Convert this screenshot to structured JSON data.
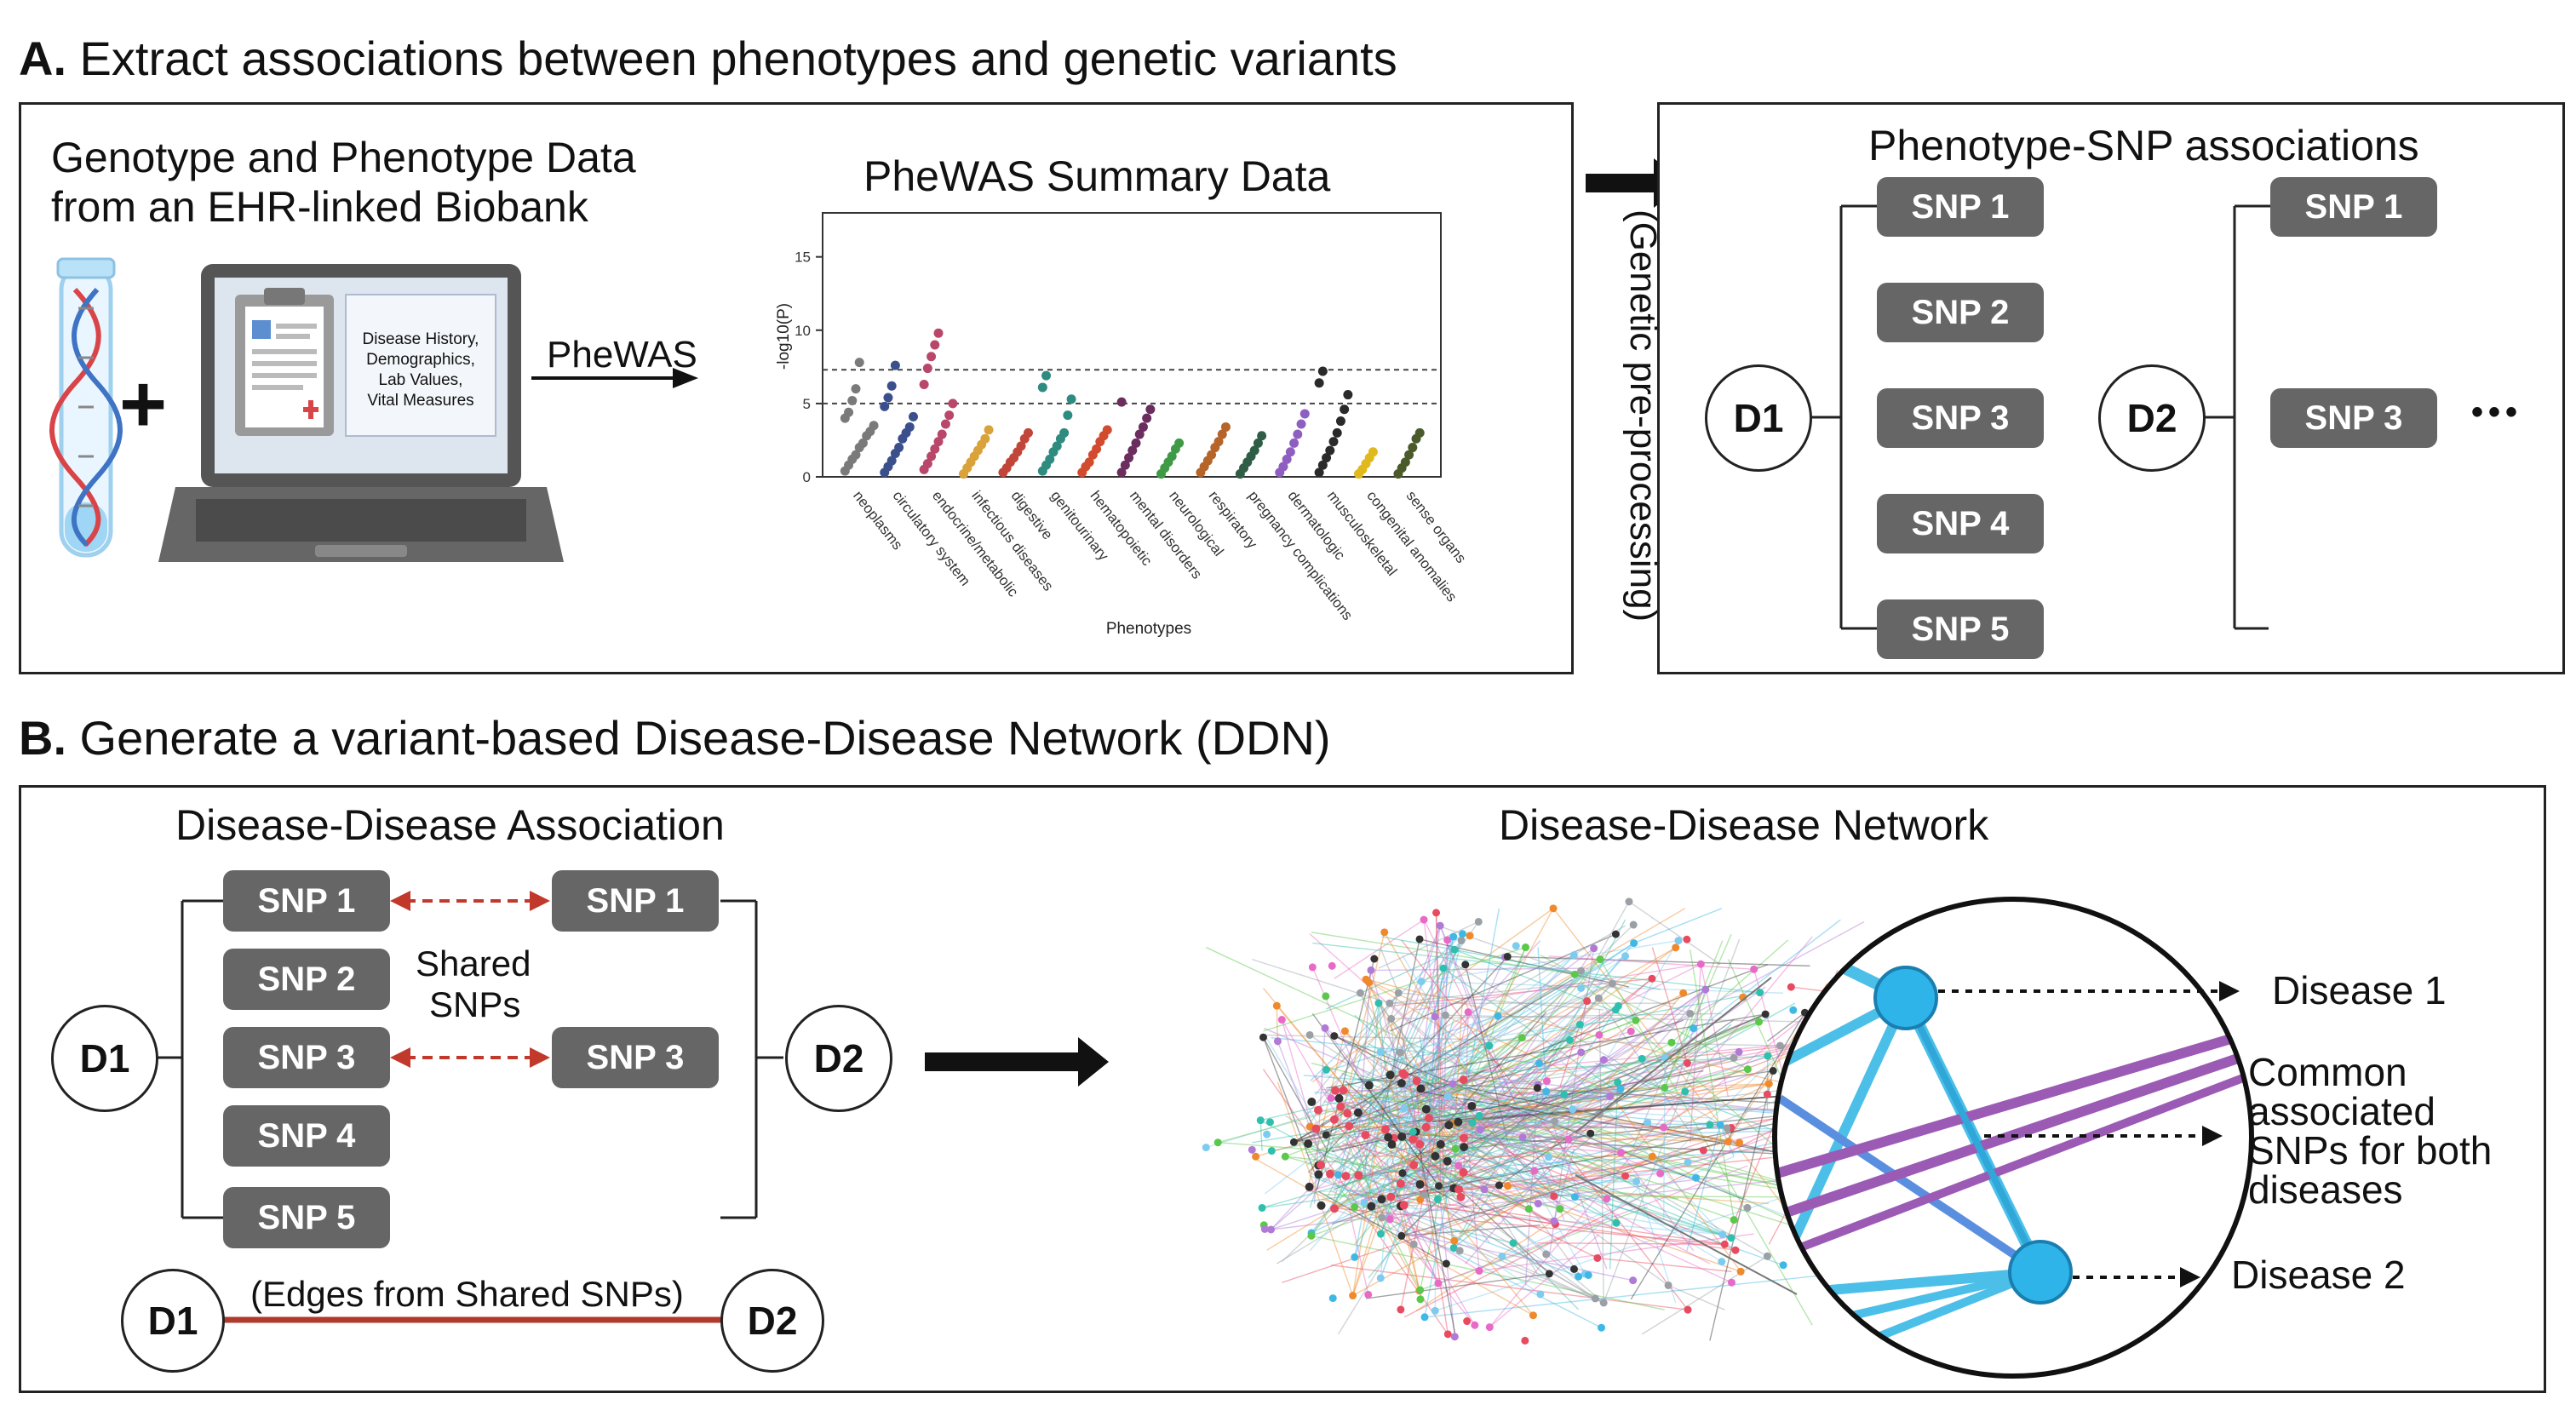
{
  "section_a": {
    "letter": "A.",
    "title": " Extract associations between phenotypes and genetic variants",
    "left_panel": {
      "data_title_line1": "Genotype and Phenotype Data",
      "data_title_line2": "from an EHR-linked Biobank",
      "plus": "+",
      "record_lines": [
        "Disease History,",
        "Demographics,",
        "Lab Values,",
        "Vital Measures"
      ],
      "arrow_label": "PheWAS",
      "plot_title": "PheWAS Summary Data"
    },
    "transition_label": "(Genetic pre-processing)",
    "right_panel": {
      "title": "Phenotype-SNP associations",
      "d1": "D1",
      "d2": "D2",
      "d1_snps": [
        "SNP 1",
        "SNP 2",
        "SNP 3",
        "SNP 4",
        "SNP 5"
      ],
      "d2_snps": [
        "SNP 1",
        "SNP 3"
      ],
      "ellipsis": "•••"
    }
  },
  "section_b": {
    "letter": "B.",
    "title": " Generate a variant-based Disease-Disease Network (DDN)",
    "association": {
      "title": "Disease-Disease Association",
      "d1": "D1",
      "d2": "D2",
      "d1_snps": [
        "SNP 1",
        "SNP 2",
        "SNP 3",
        "SNP 4",
        "SNP 5"
      ],
      "d2_snps": [
        "SNP 1",
        "SNP 3"
      ],
      "shared_line1": "Shared",
      "shared_line2": "SNPs",
      "edge_label": "(Edges from Shared SNPs)",
      "edge_d1": "D1",
      "edge_d2": "D2"
    },
    "network": {
      "title": "Disease-Disease Network",
      "disease1": "Disease 1",
      "disease2": "Disease 2",
      "common_lines": [
        "Common",
        "associated",
        "SNPs for both",
        "diseases"
      ]
    }
  },
  "chart_data": {
    "type": "scatter",
    "title": "PheWAS Summary Data",
    "xlabel": "Phenotypes",
    "ylabel": "-log10(P)",
    "ylim": [
      0,
      18
    ],
    "yticks": [
      0,
      5,
      10,
      15
    ],
    "threshold_lines": [
      7.3,
      5
    ],
    "categories": [
      "neoplasms",
      "circulatory system",
      "endocrine/metabolic",
      "infectious diseases",
      "digestive",
      "genitourinary",
      "hematopoietic",
      "mental disorders",
      "neurological",
      "respiratory",
      "pregnancy complications",
      "dermatologic",
      "musculoskeletal",
      "congenital anomalies",
      "sense organs"
    ],
    "colors": [
      "#7a7a7a",
      "#3a4f8c",
      "#b8476a",
      "#d9a23a",
      "#c2453a",
      "#2e8b7f",
      "#d24b2f",
      "#6b2c5e",
      "#3f9a46",
      "#b5652a",
      "#2f5d46",
      "#8e5fc0",
      "#2a2a2a",
      "#e0b91c",
      "#4a5a2a"
    ],
    "series": [
      {
        "values": [
          0.4,
          0.8,
          1.2,
          1.5,
          2.0,
          2.3,
          2.8,
          3.1,
          3.5,
          4.0,
          4.4,
          5.2,
          6.0,
          7.8
        ]
      },
      {
        "values": [
          0.3,
          0.7,
          1.1,
          1.6,
          2.0,
          2.6,
          3.0,
          3.4,
          4.1,
          4.8,
          5.4,
          6.2,
          7.6
        ]
      },
      {
        "values": [
          0.5,
          0.9,
          1.4,
          1.9,
          2.4,
          2.9,
          3.6,
          4.2,
          5.0,
          6.3,
          7.4,
          8.2,
          9.0,
          9.8
        ]
      },
      {
        "values": [
          0.2,
          0.6,
          1.0,
          1.4,
          1.8,
          2.2,
          2.6,
          3.2
        ]
      },
      {
        "values": [
          0.3,
          0.6,
          1.0,
          1.3,
          1.7,
          2.1,
          2.6,
          3.0
        ]
      },
      {
        "values": [
          0.4,
          0.8,
          1.2,
          1.7,
          2.1,
          2.6,
          3.0,
          4.2,
          5.3,
          6.1,
          6.9
        ]
      },
      {
        "values": [
          0.3,
          0.7,
          1.0,
          1.5,
          1.9,
          2.4,
          2.8,
          3.2
        ]
      },
      {
        "values": [
          0.3,
          0.8,
          1.3,
          1.8,
          2.3,
          2.9,
          3.4,
          4.0,
          4.6,
          5.1
        ]
      },
      {
        "values": [
          0.2,
          0.6,
          1.0,
          1.4,
          1.9,
          2.3
        ]
      },
      {
        "values": [
          0.3,
          0.7,
          1.1,
          1.5,
          2.0,
          2.4,
          2.9,
          3.4
        ]
      },
      {
        "values": [
          0.2,
          0.6,
          1.0,
          1.4,
          1.8,
          2.3,
          2.8
        ]
      },
      {
        "values": [
          0.3,
          0.7,
          1.2,
          1.7,
          2.3,
          2.9,
          3.6,
          4.3
        ]
      },
      {
        "values": [
          0.3,
          0.8,
          1.3,
          1.8,
          2.4,
          3.0,
          3.8,
          4.6,
          5.6,
          6.4,
          7.2
        ]
      },
      {
        "values": [
          0.2,
          0.5,
          0.9,
          1.3,
          1.7
        ]
      },
      {
        "values": [
          0.2,
          0.6,
          1.0,
          1.5,
          2.0,
          2.6,
          3.0
        ]
      }
    ]
  }
}
